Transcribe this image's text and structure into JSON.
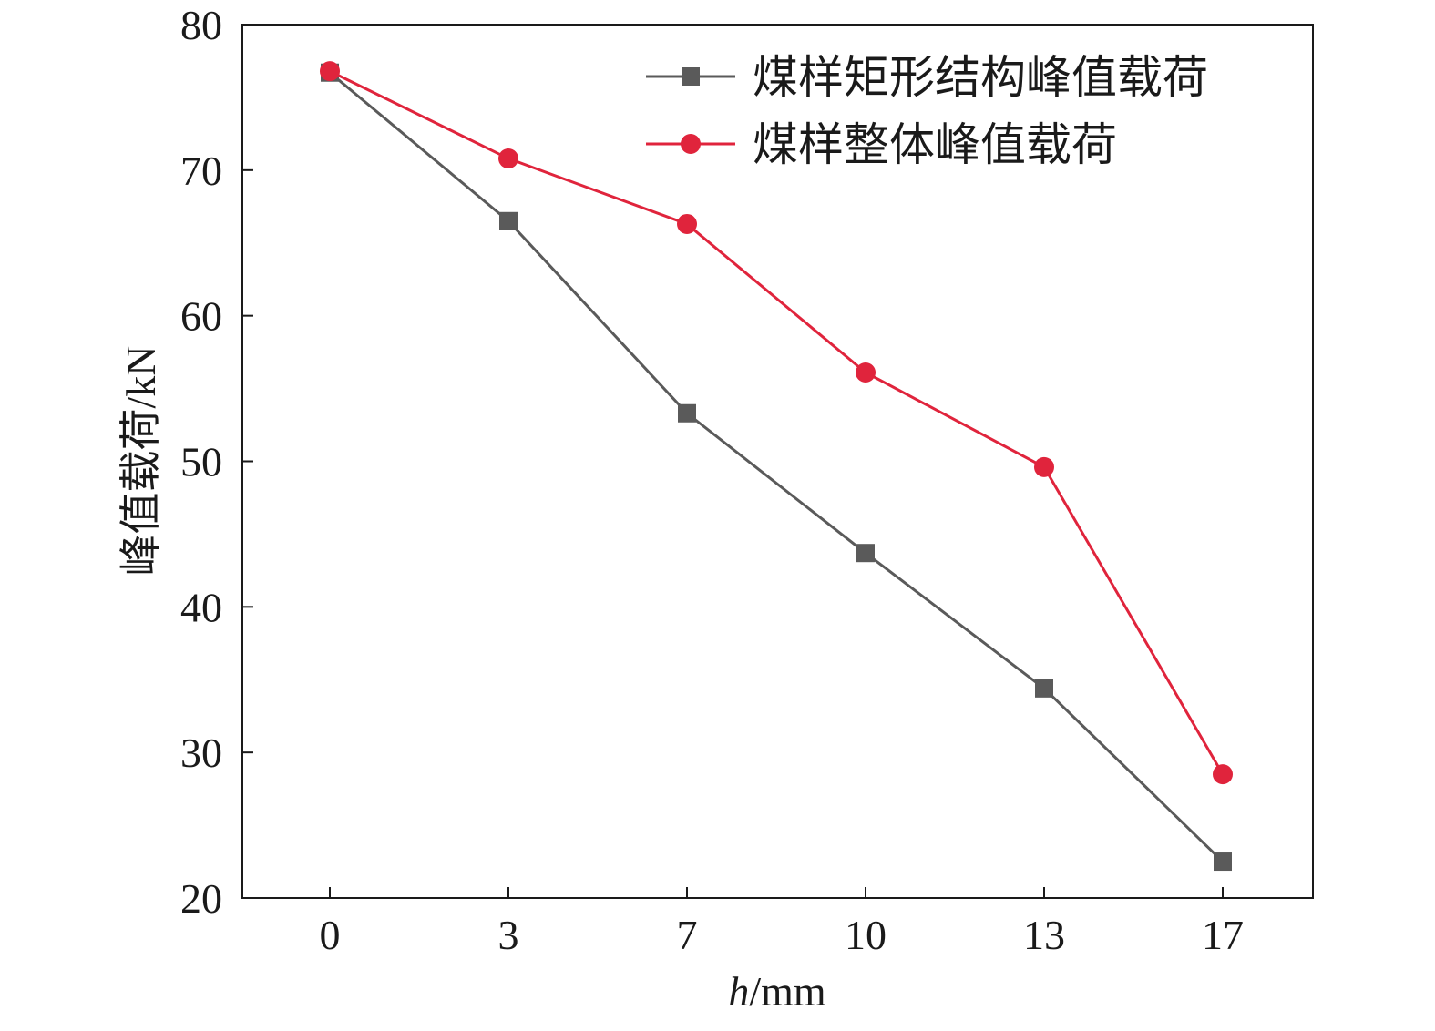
{
  "chart_data": {
    "type": "line",
    "categories": [
      "0",
      "3",
      "7",
      "10",
      "13",
      "17"
    ],
    "xlabel_italic": "h",
    "xlabel_rest": "/mm",
    "ylabel": "峰值载荷/kN",
    "ylim": [
      20,
      80
    ],
    "yticks": [
      20,
      30,
      40,
      50,
      60,
      70,
      80
    ],
    "legend_position": "top-right",
    "grid": false,
    "series": [
      {
        "name": "煤样矩形结构峰值载荷",
        "marker": "square",
        "color": "#5a5a5a",
        "values": [
          76.7,
          66.5,
          53.3,
          43.7,
          34.4,
          22.5
        ]
      },
      {
        "name": "煤样整体峰值载荷",
        "marker": "circle",
        "color": "#e0243c",
        "values": [
          76.8,
          70.8,
          66.3,
          56.1,
          49.6,
          28.5
        ]
      }
    ]
  }
}
